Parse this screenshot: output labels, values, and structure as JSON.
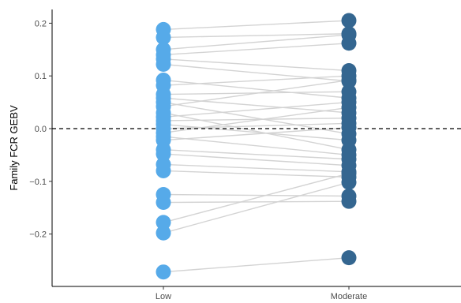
{
  "chart_data": {
    "type": "scatter",
    "title": "",
    "xlabel": "",
    "ylabel": "Family FCR GEBV",
    "categories": [
      "Low",
      "Moderate"
    ],
    "ylim": [
      -0.28,
      0.22
    ],
    "yticks": [
      {
        "value": 0.2,
        "label": "0.2"
      },
      {
        "value": 0.1,
        "label": "0.1"
      },
      {
        "value": 0.0,
        "label": "0.0"
      },
      {
        "value": -0.1,
        "label": "−0.1"
      },
      {
        "value": -0.2,
        "label": "−0.2"
      }
    ],
    "reference_line": {
      "y": 0,
      "style": "dashed"
    },
    "colors": {
      "Low": "#56aae9",
      "Moderate": "#346690",
      "lines": "#d3d3d3",
      "reference": "#000000"
    },
    "grid": false,
    "legend": "none",
    "pairs": [
      {
        "low": 0.188,
        "moderate": 0.205
      },
      {
        "low": 0.173,
        "moderate": 0.18
      },
      {
        "low": 0.15,
        "moderate": 0.178
      },
      {
        "low": 0.14,
        "moderate": 0.162
      },
      {
        "low": 0.132,
        "moderate": 0.11
      },
      {
        "low": 0.122,
        "moderate": 0.09
      },
      {
        "low": 0.092,
        "moderate": 0.058
      },
      {
        "low": 0.082,
        "moderate": 0.1
      },
      {
        "low": 0.065,
        "moderate": 0.07
      },
      {
        "low": 0.058,
        "moderate": 0.03
      },
      {
        "low": 0.05,
        "moderate": -0.01
      },
      {
        "low": 0.042,
        "moderate": 0.092
      },
      {
        "low": 0.03,
        "moderate": -0.04
      },
      {
        "low": 0.022,
        "moderate": 0.05
      },
      {
        "low": 0.015,
        "moderate": 0.02
      },
      {
        "low": 0.008,
        "moderate": -0.022
      },
      {
        "low": 0.0,
        "moderate": 0.01
      },
      {
        "low": -0.008,
        "moderate": 0.04
      },
      {
        "low": -0.015,
        "moderate": -0.05
      },
      {
        "low": -0.022,
        "moderate": 0.002
      },
      {
        "low": -0.04,
        "moderate": -0.058
      },
      {
        "low": -0.048,
        "moderate": -0.07
      },
      {
        "low": -0.068,
        "moderate": -0.082
      },
      {
        "low": -0.08,
        "moderate": -0.092
      },
      {
        "low": -0.125,
        "moderate": -0.128
      },
      {
        "low": -0.14,
        "moderate": -0.138
      },
      {
        "low": -0.178,
        "moderate": -0.085
      },
      {
        "low": -0.198,
        "moderate": -0.102
      },
      {
        "low": -0.272,
        "moderate": -0.245
      }
    ]
  }
}
